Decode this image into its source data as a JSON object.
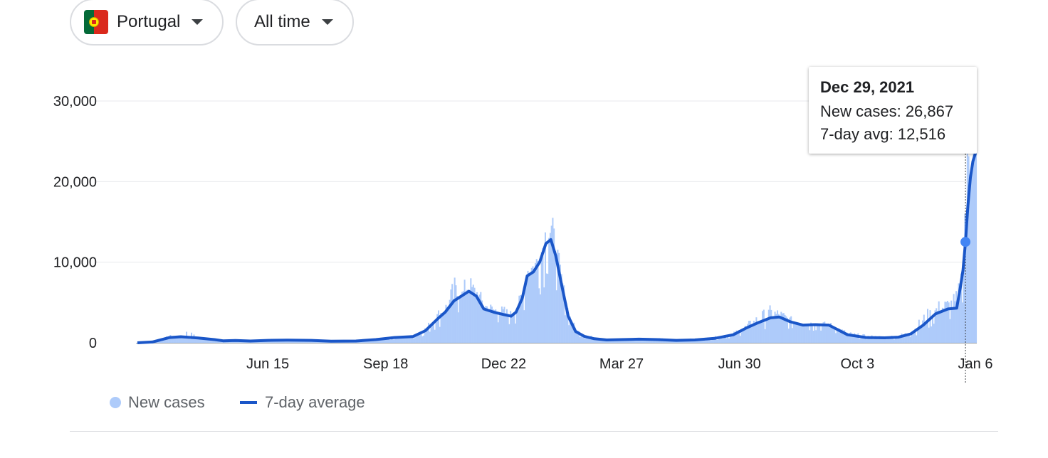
{
  "filters": {
    "country": "Portugal",
    "range": "All time",
    "country_icon": "portugal-flag-icon",
    "dropdown_icon": "caret-down-icon"
  },
  "tooltip": {
    "date": "Dec 29, 2021",
    "new_cases_text": "New cases: 26,867",
    "avg_text": "7-day avg: 12,516"
  },
  "legend": {
    "new_cases": "New cases",
    "seven_day": "7-day average"
  },
  "colors": {
    "bars": "#aecbfa",
    "line": "#1a56c8",
    "marker": "#4285f4",
    "grid": "#e8eaed"
  },
  "chart_data": {
    "type": "bar",
    "x_domain": [
      "2020-03-02",
      "2022-01-06"
    ],
    "y_axis": {
      "ticks": [
        0,
        10000,
        20000,
        30000
      ],
      "tick_labels": [
        "0",
        "10,000",
        "20,000",
        "30,000"
      ],
      "ylim": [
        0,
        30000
      ]
    },
    "x_ticks": [
      {
        "date": "2020-06-15",
        "label": "Jun 15"
      },
      {
        "date": "2020-09-18",
        "label": "Sep 18"
      },
      {
        "date": "2020-12-22",
        "label": "Dec 22"
      },
      {
        "date": "2021-03-27",
        "label": "Mar 27"
      },
      {
        "date": "2021-06-30",
        "label": "Jun 30"
      },
      {
        "date": "2021-10-03",
        "label": "Oct 3"
      },
      {
        "date": "2022-01-06",
        "label": "Jan 6"
      }
    ],
    "highlight": {
      "date": "2021-12-29",
      "new_cases": 26867,
      "avg": 12516
    },
    "series": [
      {
        "name": "7-day average",
        "type": "line",
        "points": [
          [
            "2020-03-02",
            0
          ],
          [
            "2020-03-14",
            100
          ],
          [
            "2020-03-28",
            650
          ],
          [
            "2020-04-06",
            750
          ],
          [
            "2020-04-20",
            600
          ],
          [
            "2020-05-03",
            400
          ],
          [
            "2020-05-10",
            250
          ],
          [
            "2020-05-20",
            280
          ],
          [
            "2020-06-01",
            220
          ],
          [
            "2020-06-15",
            300
          ],
          [
            "2020-07-01",
            330
          ],
          [
            "2020-07-20",
            300
          ],
          [
            "2020-08-05",
            200
          ],
          [
            "2020-08-25",
            220
          ],
          [
            "2020-09-10",
            400
          ],
          [
            "2020-09-25",
            650
          ],
          [
            "2020-10-10",
            780
          ],
          [
            "2020-10-20",
            1500
          ],
          [
            "2020-10-30",
            3000
          ],
          [
            "2020-11-05",
            3800
          ],
          [
            "2020-11-12",
            5200
          ],
          [
            "2020-11-18",
            5800
          ],
          [
            "2020-11-24",
            6400
          ],
          [
            "2020-11-30",
            5800
          ],
          [
            "2020-12-06",
            4200
          ],
          [
            "2020-12-14",
            3800
          ],
          [
            "2020-12-22",
            3500
          ],
          [
            "2020-12-28",
            3300
          ],
          [
            "2021-01-01",
            3800
          ],
          [
            "2021-01-06",
            5500
          ],
          [
            "2021-01-10",
            8300
          ],
          [
            "2021-01-15",
            8800
          ],
          [
            "2021-01-20",
            10000
          ],
          [
            "2021-01-25",
            12300
          ],
          [
            "2021-01-29",
            12800
          ],
          [
            "2021-02-02",
            10800
          ],
          [
            "2021-02-07",
            7000
          ],
          [
            "2021-02-12",
            3300
          ],
          [
            "2021-02-18",
            1400
          ],
          [
            "2021-02-25",
            800
          ],
          [
            "2021-03-05",
            500
          ],
          [
            "2021-03-15",
            350
          ],
          [
            "2021-03-27",
            400
          ],
          [
            "2021-04-10",
            450
          ],
          [
            "2021-04-25",
            400
          ],
          [
            "2021-05-10",
            300
          ],
          [
            "2021-05-25",
            350
          ],
          [
            "2021-06-10",
            550
          ],
          [
            "2021-06-25",
            1000
          ],
          [
            "2021-07-05",
            1800
          ],
          [
            "2021-07-15",
            2500
          ],
          [
            "2021-07-25",
            3100
          ],
          [
            "2021-08-01",
            3200
          ],
          [
            "2021-08-10",
            2600
          ],
          [
            "2021-08-20",
            2200
          ],
          [
            "2021-08-30",
            2250
          ],
          [
            "2021-09-10",
            2200
          ],
          [
            "2021-09-25",
            1000
          ],
          [
            "2021-10-10",
            650
          ],
          [
            "2021-10-25",
            620
          ],
          [
            "2021-11-05",
            700
          ],
          [
            "2021-11-15",
            1100
          ],
          [
            "2021-11-25",
            2200
          ],
          [
            "2021-12-05",
            3600
          ],
          [
            "2021-12-15",
            4200
          ],
          [
            "2021-12-22",
            4300
          ],
          [
            "2021-12-25",
            7000
          ],
          [
            "2021-12-27",
            9000
          ],
          [
            "2021-12-29",
            12516
          ],
          [
            "2021-12-31",
            17000
          ],
          [
            "2022-01-02",
            20500
          ],
          [
            "2022-01-04",
            22500
          ],
          [
            "2022-01-06",
            23500
          ]
        ]
      },
      {
        "name": "New cases",
        "type": "bar",
        "envelope": [
          [
            "2020-03-02",
            0
          ],
          [
            "2020-03-14",
            100
          ],
          [
            "2020-03-28",
            900
          ],
          [
            "2020-04-06",
            850
          ],
          [
            "2020-04-10",
            1500
          ],
          [
            "2020-04-20",
            650
          ],
          [
            "2020-05-03",
            450
          ],
          [
            "2020-05-10",
            300
          ],
          [
            "2020-05-20",
            350
          ],
          [
            "2020-06-01",
            260
          ],
          [
            "2020-06-15",
            400
          ],
          [
            "2020-07-01",
            380
          ],
          [
            "2020-07-20",
            350
          ],
          [
            "2020-08-05",
            250
          ],
          [
            "2020-08-25",
            300
          ],
          [
            "2020-09-10",
            500
          ],
          [
            "2020-09-25",
            800
          ],
          [
            "2020-10-10",
            950
          ],
          [
            "2020-10-20",
            2000
          ],
          [
            "2020-10-30",
            4000
          ],
          [
            "2020-11-05",
            5000
          ],
          [
            "2020-11-12",
            7500
          ],
          [
            "2020-11-18",
            6500
          ],
          [
            "2020-11-22",
            8300
          ],
          [
            "2020-11-30",
            6800
          ],
          [
            "2020-12-06",
            5200
          ],
          [
            "2020-12-14",
            4500
          ],
          [
            "2020-12-22",
            4300
          ],
          [
            "2020-12-28",
            3800
          ],
          [
            "2021-01-01",
            4500
          ],
          [
            "2021-01-06",
            7000
          ],
          [
            "2021-01-10",
            10200
          ],
          [
            "2021-01-15",
            10500
          ],
          [
            "2021-01-20",
            12000
          ],
          [
            "2021-01-24",
            15300
          ],
          [
            "2021-01-28",
            16300
          ],
          [
            "2021-02-02",
            12500
          ],
          [
            "2021-02-07",
            7800
          ],
          [
            "2021-02-12",
            3800
          ],
          [
            "2021-02-18",
            1700
          ],
          [
            "2021-02-25",
            1100
          ],
          [
            "2021-03-05",
            650
          ],
          [
            "2021-03-15",
            500
          ],
          [
            "2021-03-27",
            550
          ],
          [
            "2021-04-10",
            650
          ],
          [
            "2021-04-25",
            550
          ],
          [
            "2021-05-10",
            400
          ],
          [
            "2021-05-25",
            500
          ],
          [
            "2021-06-10",
            750
          ],
          [
            "2021-06-25",
            1300
          ],
          [
            "2021-07-05",
            2300
          ],
          [
            "2021-07-15",
            3500
          ],
          [
            "2021-07-25",
            4300
          ],
          [
            "2021-08-01",
            4000
          ],
          [
            "2021-08-10",
            3100
          ],
          [
            "2021-08-20",
            2700
          ],
          [
            "2021-08-30",
            2600
          ],
          [
            "2021-09-10",
            2500
          ],
          [
            "2021-09-25",
            1300
          ],
          [
            "2021-10-10",
            900
          ],
          [
            "2021-10-25",
            800
          ],
          [
            "2021-11-05",
            1000
          ],
          [
            "2021-11-15",
            1500
          ],
          [
            "2021-11-25",
            3400
          ],
          [
            "2021-12-05",
            4800
          ],
          [
            "2021-12-15",
            5400
          ],
          [
            "2021-12-22",
            6000
          ],
          [
            "2021-12-25",
            9000
          ],
          [
            "2021-12-27",
            17000
          ],
          [
            "2021-12-29",
            26867
          ],
          [
            "2021-12-31",
            30500
          ],
          [
            "2022-01-02",
            29000
          ],
          [
            "2022-01-04",
            32000
          ],
          [
            "2022-01-06",
            33500
          ]
        ]
      }
    ]
  }
}
